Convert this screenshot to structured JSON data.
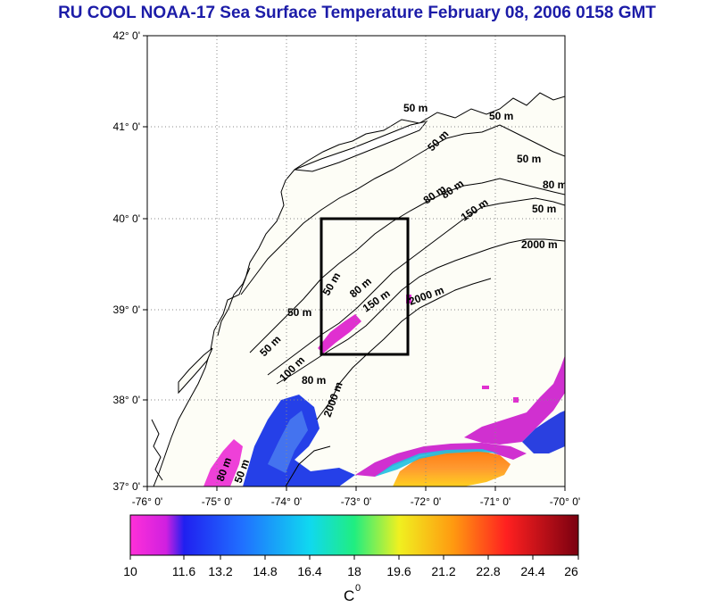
{
  "title": "RU COOL  NOAA-17 Sea Surface Temperature February 08, 2006 0158 GMT",
  "map": {
    "lat_labels": [
      "42° 0'",
      "41° 0'",
      "40° 0'",
      "39° 0'",
      "38° 0'",
      "37° 0'"
    ],
    "lon_labels": [
      "-76° 0'",
      "-75° 0'",
      "-74° 0'",
      "-73° 0'",
      "-72° 0'",
      "-71° 0'",
      "-70° 0'"
    ],
    "contour_labels": {
      "c1": "50 m",
      "c2": "50 m",
      "c3": "50 m",
      "c4": "50 m",
      "c5": "80 m",
      "c6": "80 m",
      "c7": "80 m",
      "c8": "150 m",
      "c9": "50 m",
      "c10": "2000 m",
      "c11": "50 m",
      "c12": "80 m",
      "c13": "150 m",
      "c14": "2000 m",
      "c15": "50 m",
      "c16": "50 m",
      "c17": "100 m",
      "c18": "80 m",
      "c19": "2000 m",
      "c20": "80 m",
      "c21": "50 m"
    }
  },
  "colorbar": {
    "tick_labels": [
      "10",
      "11.6",
      "13.2",
      "14.8",
      "16.4",
      "18",
      "19.6",
      "21.2",
      "22.8",
      "24.4",
      "26"
    ],
    "unit": "C",
    "unit_sup": "0",
    "range": [
      10,
      26
    ]
  },
  "colors": {
    "title": "#1c1ca8",
    "land": "#ffffff",
    "ocean_no_data": "#fdfdf6",
    "box": "#000000"
  }
}
